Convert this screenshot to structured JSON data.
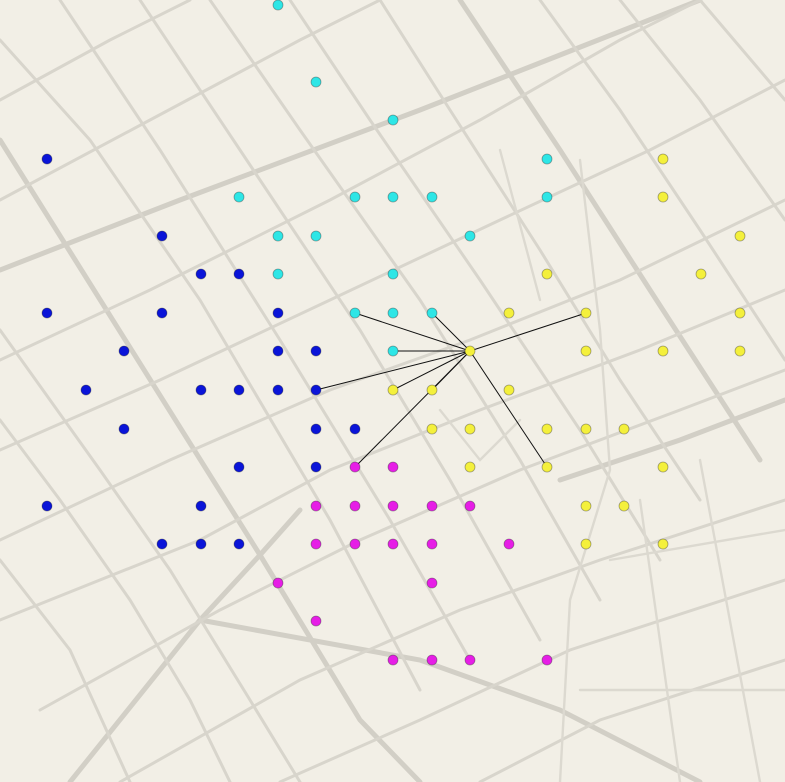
{
  "map": {
    "background": "#f2efe6",
    "street_color": "#d8d5cc",
    "clusters": {
      "blue": "#0a14d8",
      "cyan": "#2ee6e6",
      "yellow": "#f4f03c",
      "magenta": "#e61ee6"
    },
    "hub_cluster": "yellow"
  }
}
